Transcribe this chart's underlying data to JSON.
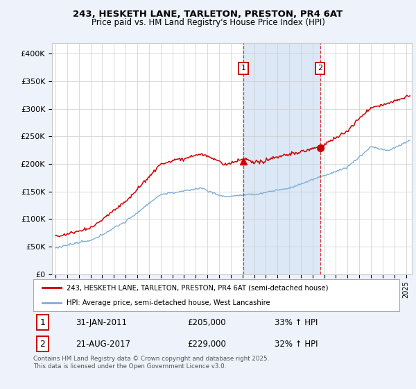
{
  "title_line1": "243, HESKETH LANE, TARLETON, PRESTON, PR4 6AT",
  "title_line2": "Price paid vs. HM Land Registry's House Price Index (HPI)",
  "ylabel_ticks": [
    "£0",
    "£50K",
    "£100K",
    "£150K",
    "£200K",
    "£250K",
    "£300K",
    "£350K",
    "£400K"
  ],
  "ytick_values": [
    0,
    50000,
    100000,
    150000,
    200000,
    250000,
    300000,
    350000,
    400000
  ],
  "ylim": [
    0,
    420000
  ],
  "xlim_start": 1994.7,
  "xlim_end": 2025.5,
  "red_color": "#cc0000",
  "blue_color": "#7eaed4",
  "shade_color": "#dce8f5",
  "vline_color": "#dd3333",
  "marker1_x": 2011.08,
  "marker1_y": 205000,
  "marker2_x": 2017.64,
  "marker2_y": 229000,
  "legend_label_red": "243, HESKETH LANE, TARLETON, PRESTON, PR4 6AT (semi-detached house)",
  "legend_label_blue": "HPI: Average price, semi-detached house, West Lancashire",
  "footnote": "Contains HM Land Registry data © Crown copyright and database right 2025.\nThis data is licensed under the Open Government Licence v3.0.",
  "background_color": "#eef2fa",
  "plot_bg_color": "#ffffff",
  "grid_color": "#cccccc"
}
